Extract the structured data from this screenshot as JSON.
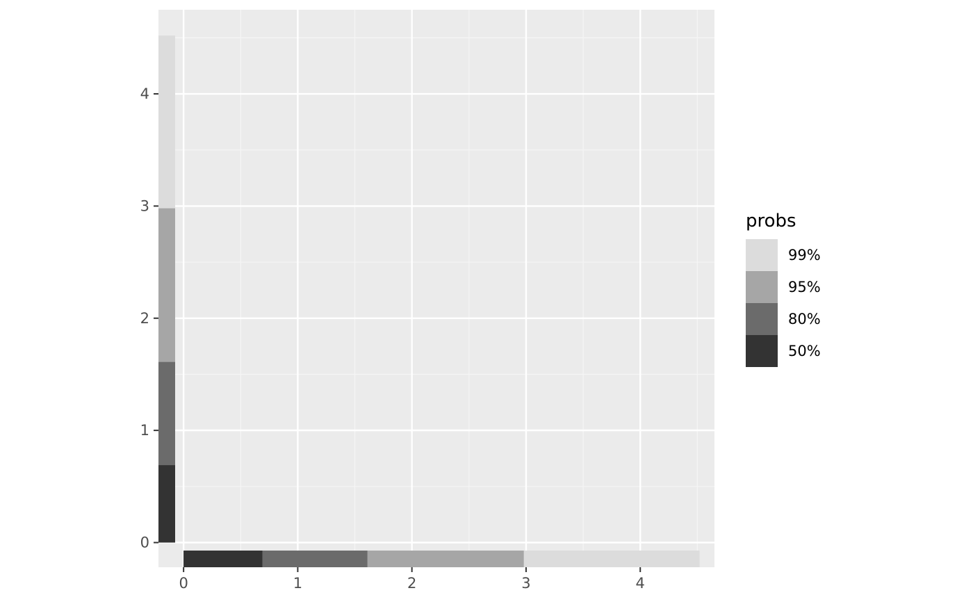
{
  "chart_data": {
    "type": "rug-interval",
    "title": "",
    "xlabel": "",
    "ylabel": "",
    "xlim": [
      -0.22,
      4.65
    ],
    "ylim": [
      -0.22,
      4.75
    ],
    "x_ticks": [
      0,
      1,
      2,
      3,
      4
    ],
    "y_ticks": [
      0,
      1,
      2,
      3,
      4
    ],
    "x_tick_labels": [
      "0",
      "1",
      "2",
      "3",
      "4"
    ],
    "y_tick_labels": [
      "0",
      "1",
      "2",
      "3",
      "4"
    ],
    "grid": true,
    "legend_position": "right",
    "legend": {
      "title": "probs",
      "entries": [
        {
          "label": "99%",
          "color": "#dcdcdc"
        },
        {
          "label": "95%",
          "color": "#a6a6a6"
        },
        {
          "label": "80%",
          "color": "#6b6b6b"
        },
        {
          "label": "50%",
          "color": "#333333"
        }
      ]
    },
    "series": [
      {
        "name": "99%",
        "start": 0,
        "end": 4.52,
        "color": "#dcdcdc"
      },
      {
        "name": "95%",
        "start": 0,
        "end": 2.98,
        "color": "#a6a6a6"
      },
      {
        "name": "80%",
        "start": 0,
        "end": 1.61,
        "color": "#6b6b6b"
      },
      {
        "name": "50%",
        "start": 0,
        "end": 0.69,
        "color": "#333333"
      }
    ]
  },
  "colors": {
    "panel_background": "#ebebeb",
    "grid_major": "#ffffff",
    "grid_minor": "#f5f5f5",
    "tick_color": "#333333"
  }
}
